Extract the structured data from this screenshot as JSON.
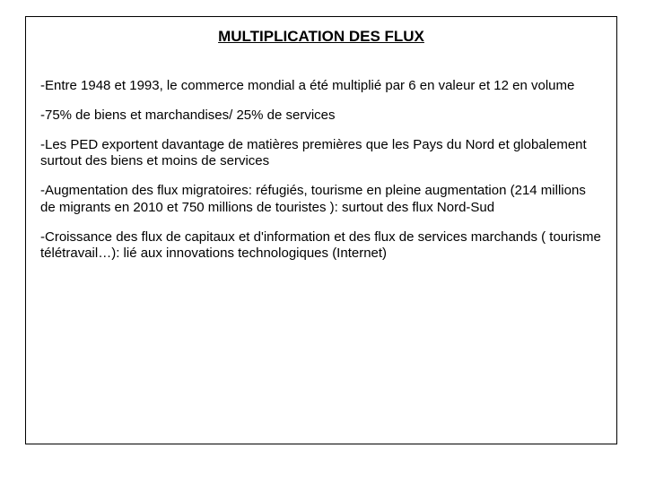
{
  "document": {
    "title": "MULTIPLICATION DES FLUX",
    "paragraphs": [
      "-Entre 1948 et 1993, le commerce mondial a été multiplié par 6 en valeur et 12 en volume",
      "-75% de biens et marchandises/ 25% de services",
      "-Les PED exportent davantage de matières premières que les Pays du Nord et globalement surtout des biens et moins de services",
      "-Augmentation des flux migratoires: réfugiés, tourisme en pleine augmentation (214 millions de migrants en 2010 et 750 millions de touristes ): surtout des flux Nord-Sud",
      "-Croissance des flux de capitaux et d'information et des flux de services marchands ( tourisme télétravail…): lié aux innovations technologiques (Internet)"
    ],
    "style": {
      "frame_border_color": "#000000",
      "background_color": "#ffffff",
      "text_color": "#000000",
      "title_fontsize": 17,
      "body_fontsize": 15,
      "font_family": "Arial"
    }
  }
}
